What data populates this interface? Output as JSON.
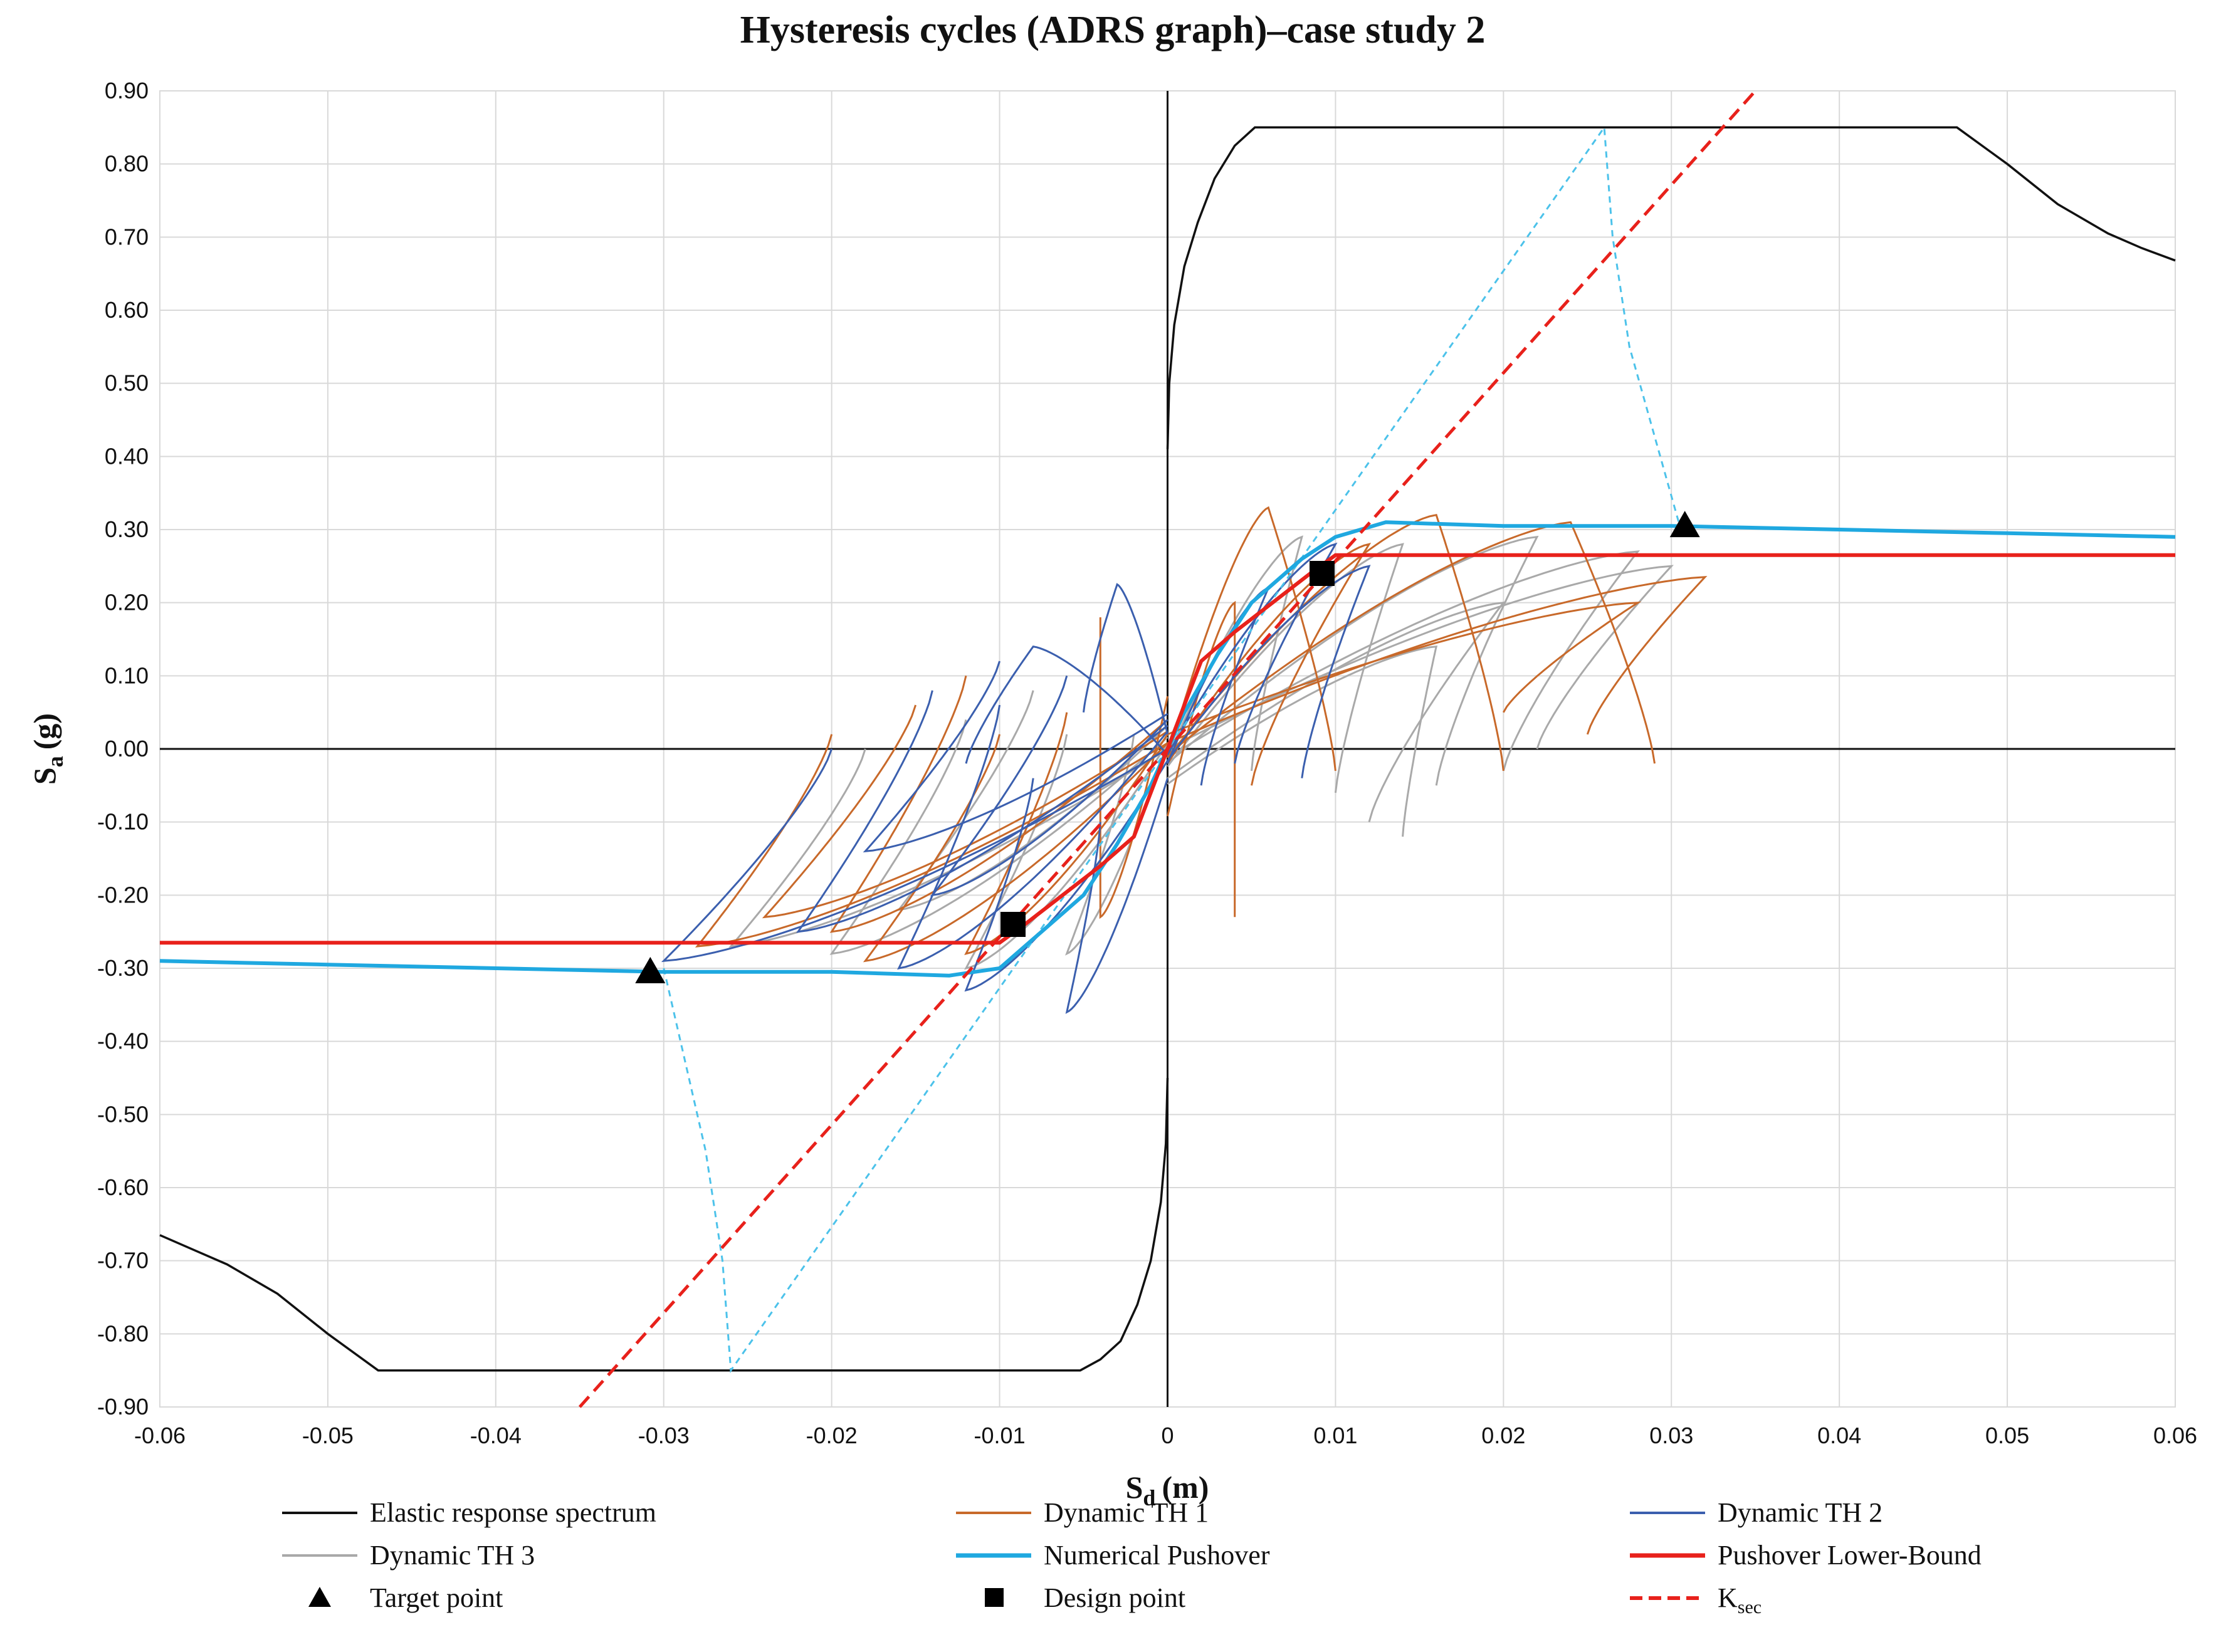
{
  "chart_data": {
    "type": "line",
    "title": "Hysteresis cycles (ADRS graph)–case study 2",
    "xlabel": "S",
    "xlabel_sub": "d",
    "xlabel_unit": "(m)",
    "ylabel": "S",
    "ylabel_sub": "a",
    "ylabel_unit": "(g)",
    "xlim": [
      -0.06,
      0.06
    ],
    "ylim": [
      -0.9,
      0.9
    ],
    "x_ticks": [
      "-0.06",
      "-0.05",
      "-0.04",
      "-0.03",
      "-0.02",
      "-0.01",
      "0",
      "0.01",
      "0.02",
      "0.03",
      "0.04",
      "0.05",
      "0.06"
    ],
    "y_ticks": [
      "0.90",
      "0.80",
      "0.70",
      "0.60",
      "0.50",
      "0.40",
      "0.30",
      "0.20",
      "0.10",
      "0.00",
      "-0.10",
      "-0.20",
      "-0.30",
      "-0.40",
      "-0.50",
      "-0.60",
      "-0.70",
      "-0.80",
      "-0.90"
    ],
    "grid": true,
    "legend_position": "bottom",
    "colors": {
      "elastic": "#111111",
      "th1": "#c8692a",
      "th2": "#3b5fae",
      "th3": "#a9a9a9",
      "pushover": "#1fa8e0",
      "lower_bound": "#e8211b",
      "ksec": "#e8211b",
      "points": "#000000",
      "demand": "#4cc2ea"
    },
    "series": [
      {
        "name": "Elastic response spectrum",
        "style": "elastic",
        "segments": [
          [
            [
              0.0,
              0.41
            ],
            [
              0.0001,
              0.5
            ],
            [
              0.0004,
              0.58
            ],
            [
              0.001,
              0.66
            ],
            [
              0.0018,
              0.72
            ],
            [
              0.0028,
              0.78
            ],
            [
              0.004,
              0.825
            ],
            [
              0.0052,
              0.85
            ],
            [
              0.047,
              0.85
            ],
            [
              0.05,
              0.8
            ],
            [
              0.053,
              0.745
            ],
            [
              0.056,
              0.705
            ],
            [
              0.058,
              0.685
            ],
            [
              0.06,
              0.668
            ]
          ],
          [
            [
              0.0,
              -0.45
            ],
            [
              -0.0001,
              -0.54
            ],
            [
              -0.0004,
              -0.62
            ],
            [
              -0.001,
              -0.7
            ],
            [
              -0.0018,
              -0.76
            ],
            [
              -0.0028,
              -0.81
            ],
            [
              -0.004,
              -0.835
            ],
            [
              -0.0052,
              -0.85
            ],
            [
              -0.047,
              -0.85
            ],
            [
              -0.05,
              -0.8
            ],
            [
              -0.053,
              -0.745
            ],
            [
              -0.056,
              -0.705
            ],
            [
              -0.058,
              -0.685
            ],
            [
              -0.06,
              -0.665
            ]
          ]
        ]
      },
      {
        "name": "Dynamic TH 1",
        "style": "th1",
        "loops": [
          [
            0.006,
            0.33,
            0.01,
            -0.03
          ],
          [
            0.016,
            0.32,
            0.02,
            -0.03
          ],
          [
            0.024,
            0.31,
            0.029,
            -0.02
          ],
          [
            0.032,
            0.235,
            0.025,
            0.02
          ],
          [
            0.028,
            0.2,
            0.02,
            0.05
          ],
          [
            0.012,
            0.28,
            0.005,
            -0.05
          ],
          [
            0.004,
            0.2,
            0.004,
            -0.23
          ],
          [
            -0.004,
            -0.23,
            -0.004,
            0.18
          ],
          [
            -0.012,
            -0.28,
            -0.006,
            0.05
          ],
          [
            -0.018,
            -0.29,
            -0.01,
            0.02
          ],
          [
            -0.024,
            -0.23,
            -0.015,
            0.06
          ],
          [
            -0.028,
            -0.27,
            -0.02,
            0.02
          ],
          [
            -0.02,
            -0.25,
            -0.012,
            0.1
          ]
        ]
      },
      {
        "name": "Dynamic TH 2",
        "style": "th2",
        "loops": [
          [
            0.01,
            0.28,
            0.004,
            -0.02
          ],
          [
            0.006,
            0.22,
            0.002,
            -0.05
          ],
          [
            0.012,
            0.25,
            0.008,
            -0.04
          ],
          [
            -0.003,
            0.225,
            -0.005,
            0.05
          ],
          [
            -0.008,
            0.14,
            -0.012,
            -0.02
          ],
          [
            -0.016,
            -0.3,
            -0.01,
            0.06
          ],
          [
            -0.022,
            -0.25,
            -0.014,
            0.08
          ],
          [
            -0.03,
            -0.29,
            -0.02,
            0.0
          ],
          [
            -0.012,
            -0.33,
            -0.008,
            -0.04
          ],
          [
            -0.006,
            -0.36,
            -0.004,
            -0.1
          ],
          [
            -0.014,
            -0.2,
            -0.006,
            0.1
          ],
          [
            -0.018,
            -0.14,
            -0.01,
            0.12
          ]
        ]
      },
      {
        "name": "Dynamic TH 3",
        "style": "th3",
        "loops": [
          [
            0.008,
            0.29,
            0.005,
            -0.03
          ],
          [
            0.014,
            0.28,
            0.01,
            -0.06
          ],
          [
            0.022,
            0.29,
            0.016,
            -0.05
          ],
          [
            0.028,
            0.27,
            0.02,
            -0.03
          ],
          [
            0.03,
            0.25,
            0.022,
            0.0
          ],
          [
            0.02,
            0.2,
            0.012,
            -0.1
          ],
          [
            0.016,
            0.14,
            0.014,
            -0.12
          ],
          [
            -0.006,
            -0.28,
            -0.002,
            0.02
          ],
          [
            -0.012,
            -0.3,
            -0.006,
            0.02
          ],
          [
            -0.02,
            -0.28,
            -0.012,
            0.04
          ],
          [
            -0.026,
            -0.27,
            -0.018,
            0.0
          ],
          [
            -0.016,
            -0.22,
            -0.008,
            0.08
          ]
        ]
      },
      {
        "name": "Numerical Pushover",
        "style": "pushover",
        "points": [
          [
            -0.06,
            -0.29
          ],
          [
            -0.05,
            -0.295
          ],
          [
            -0.04,
            -0.3
          ],
          [
            -0.03,
            -0.305
          ],
          [
            -0.02,
            -0.305
          ],
          [
            -0.013,
            -0.31
          ],
          [
            -0.01,
            -0.3
          ],
          [
            -0.008,
            -0.26
          ],
          [
            -0.005,
            -0.2
          ],
          [
            -0.003,
            -0.13
          ],
          [
            -0.001,
            -0.05
          ],
          [
            0.0,
            0.0
          ],
          [
            0.001,
            0.05
          ],
          [
            0.003,
            0.13
          ],
          [
            0.005,
            0.2
          ],
          [
            0.008,
            0.26
          ],
          [
            0.01,
            0.29
          ],
          [
            0.013,
            0.31
          ],
          [
            0.02,
            0.305
          ],
          [
            0.03,
            0.305
          ],
          [
            0.04,
            0.3
          ],
          [
            0.05,
            0.295
          ],
          [
            0.06,
            0.29
          ]
        ]
      },
      {
        "name": "Pushover Lower-Bound",
        "style": "lower_bound",
        "points": [
          [
            -0.06,
            -0.265
          ],
          [
            -0.01,
            -0.265
          ],
          [
            -0.0085,
            -0.24
          ],
          [
            -0.004,
            -0.16
          ],
          [
            -0.002,
            -0.12
          ],
          [
            0.0,
            0.0
          ],
          [
            0.002,
            0.12
          ],
          [
            0.004,
            0.16
          ],
          [
            0.0085,
            0.24
          ],
          [
            0.01,
            0.265
          ],
          [
            0.06,
            0.265
          ]
        ]
      },
      {
        "name": "K",
        "name_sub": "sec",
        "style": "ksec",
        "points": [
          [
            -0.035,
            -0.9
          ],
          [
            0.035,
            0.9
          ]
        ]
      },
      {
        "style": "demand",
        "segments": [
          [
            [
              -0.03,
              -0.3
            ],
            [
              -0.0275,
              -0.55
            ],
            [
              -0.0265,
              -0.7
            ],
            [
              -0.026,
              -0.85
            ],
            [
              0.0,
              -0.0
            ],
            [
              0.026,
              0.85
            ],
            [
              0.0265,
              0.7
            ],
            [
              0.0275,
              0.55
            ],
            [
              0.0305,
              0.305
            ]
          ]
        ]
      },
      {
        "name": "Target point",
        "style": "target",
        "points": [
          [
            -0.0308,
            -0.305
          ],
          [
            0.0308,
            0.305
          ]
        ]
      },
      {
        "name": "Design point",
        "style": "design",
        "points": [
          [
            -0.0092,
            -0.24
          ],
          [
            0.0092,
            0.24
          ]
        ]
      }
    ]
  }
}
